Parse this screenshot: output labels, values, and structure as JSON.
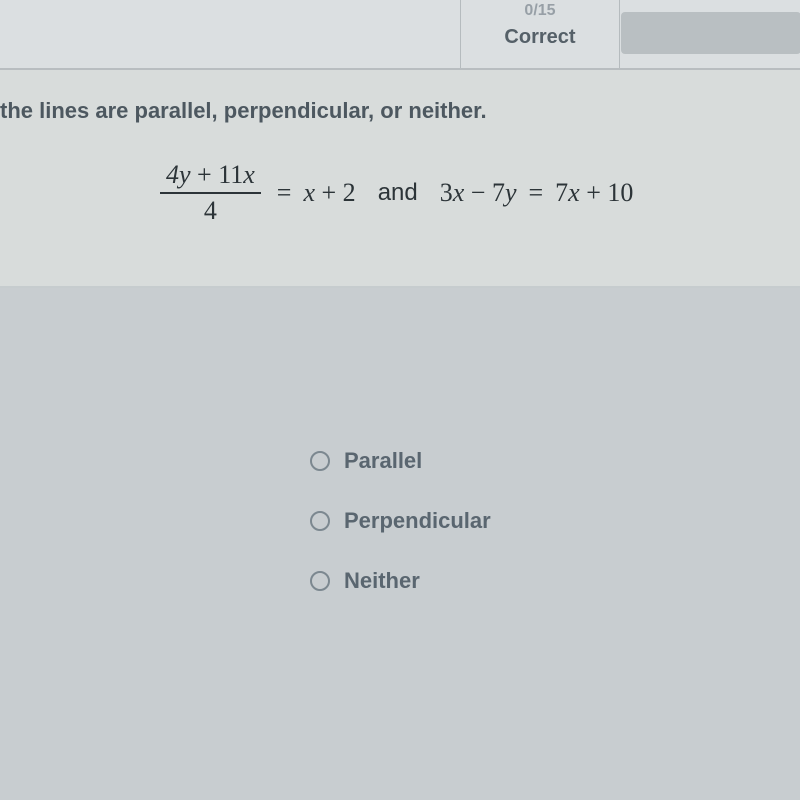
{
  "header": {
    "score": "0/15",
    "status": "Correct"
  },
  "question": {
    "prompt": "the lines are parallel, perpendicular, or neither.",
    "equation": {
      "fraction_top": "4y + 11x",
      "fraction_bottom": "4",
      "equals": "=",
      "rhs1": "x + 2",
      "connector": "and",
      "lhs2": "3x − 7y",
      "equals2": "=",
      "rhs2": "7x + 10"
    }
  },
  "options": [
    {
      "label": "Parallel"
    },
    {
      "label": "Perpendicular"
    },
    {
      "label": "Neither"
    }
  ],
  "colors": {
    "page_bg": "#c8cdd0",
    "panel_bg": "#d8dcdb",
    "topbar_bg": "#dbdfe1",
    "text_muted": "#5a6670",
    "text_dark": "#2c3438",
    "radio_border": "#7c8890"
  }
}
